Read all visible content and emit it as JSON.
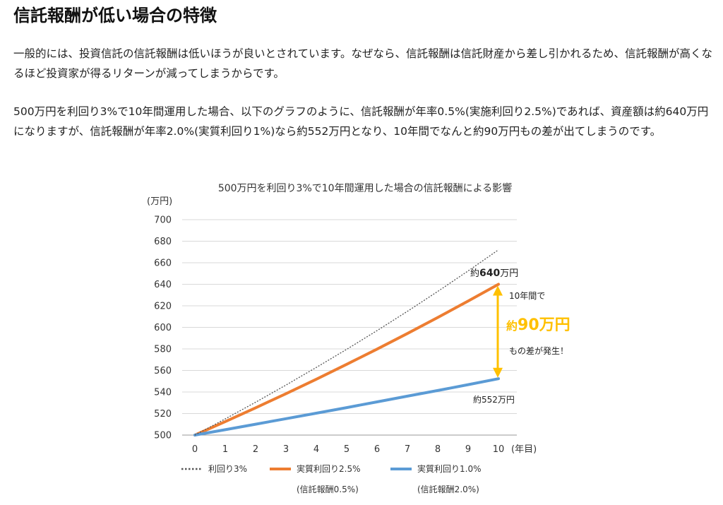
{
  "article": {
    "heading": "信託報酬が低い場合の特徴",
    "paragraph1": "一般的には、投資信託の信託報酬は低いほうが良いとされています。なぜなら、信託報酬は信託財産から差し引かれるため、信託報酬が高くなるほど投資家が得るリターンが減ってしまうからです。",
    "paragraph2": "500万円を利回り3%で10年間運用した場合、以下のグラフのように、信託報酬が年率0.5%(実施利回り2.5%)であれば、資産額は約640万円になりますが、信託報酬が年率2.0%(実質利回り1%)なら約552万円となり、10年間でなんと約90万円もの差が出てしまうのです。"
  },
  "chart_data": {
    "type": "line",
    "title": "500万円を利回り3%で10年間運用した場合の信託報酬による影響",
    "y_unit_label": "(万円)",
    "x_unit_label": "(年目)",
    "x": [
      0,
      1,
      2,
      3,
      4,
      5,
      6,
      7,
      8,
      9,
      10
    ],
    "x_ticks": [
      "0",
      "1",
      "2",
      "3",
      "4",
      "5",
      "6",
      "7",
      "8",
      "9",
      "10"
    ],
    "ylim": [
      500,
      700
    ],
    "y_ticks": [
      "500",
      "520",
      "540",
      "560",
      "580",
      "600",
      "620",
      "640",
      "660",
      "680",
      "700"
    ],
    "grid": true,
    "series": [
      {
        "name": "利回り3%",
        "sub": "",
        "style": "dotted",
        "color": "#555555",
        "values": [
          500,
          515,
          530.5,
          546.4,
          562.8,
          579.6,
          597.0,
          614.9,
          633.4,
          652.4,
          672.0
        ]
      },
      {
        "name": "実質利回り2.5%",
        "sub": "(信託報酬0.5%)",
        "style": "solid",
        "color": "#ED7D31",
        "values": [
          500,
          512.5,
          525.3,
          538.4,
          551.9,
          565.7,
          579.8,
          594.3,
          609.2,
          624.4,
          640.0
        ]
      },
      {
        "name": "実質利回り1.0%",
        "sub": "(信託報酬2.0%)",
        "style": "solid",
        "color": "#5B9BD5",
        "values": [
          500,
          505.0,
          510.1,
          515.2,
          520.3,
          525.5,
          530.8,
          536.1,
          541.4,
          546.8,
          552.3
        ]
      }
    ],
    "annotations": {
      "top_prefix": "約",
      "top_value": "640",
      "top_suffix": "万円",
      "bottom_label": "約552万円",
      "gap_line1": "10年間で",
      "gap_prefix": "約",
      "gap_value": "90万円",
      "gap_line3": "もの差が発生！",
      "arrow_color": "#FFC000",
      "arrow_from": 552,
      "arrow_to": 640
    }
  }
}
